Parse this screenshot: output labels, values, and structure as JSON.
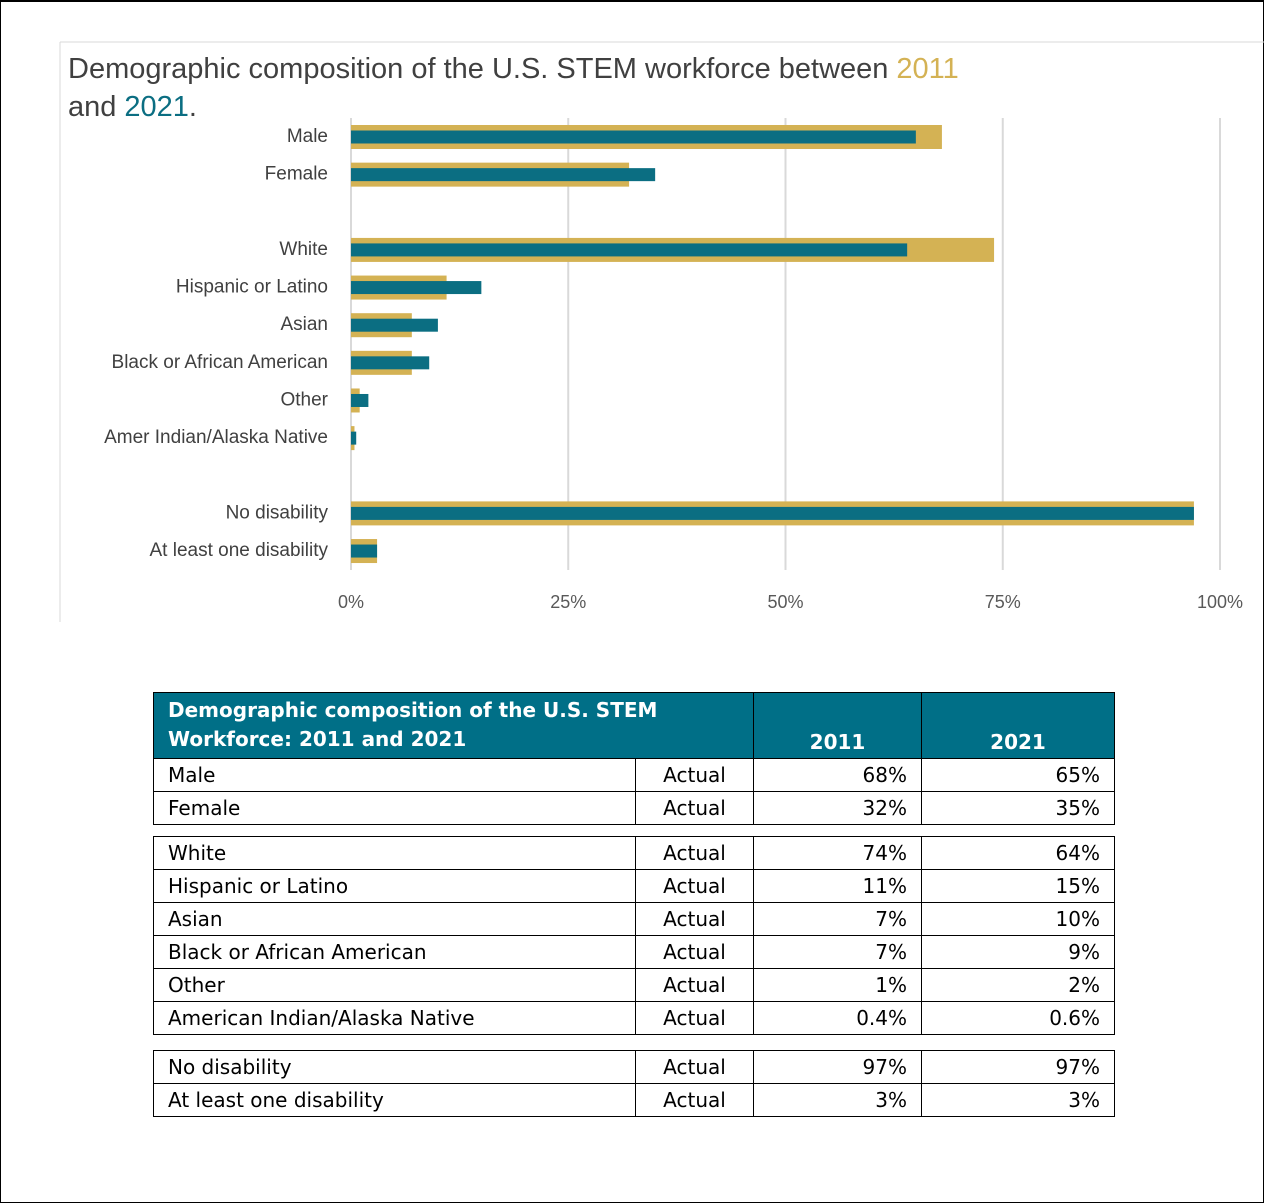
{
  "chart_data": {
    "type": "bar",
    "orientation": "horizontal",
    "title_prefix": "Demographic composition of the U.S. STEM workforce between",
    "title_join": "and",
    "title_end": ".",
    "categories": [
      "Male",
      "Female",
      null,
      "White",
      "Hispanic or Latino",
      "Asian",
      "Black or African American",
      "Other",
      "Amer Indian/Alaska Native",
      null,
      "No disability",
      "At least one disability"
    ],
    "series": [
      {
        "name": "2011",
        "color": "#d4b254",
        "values": [
          68,
          32,
          null,
          74,
          11,
          7,
          7,
          1,
          0.4,
          null,
          97,
          3
        ]
      },
      {
        "name": "2021",
        "color": "#0b6e82",
        "values": [
          65,
          35,
          null,
          64,
          15,
          10,
          9,
          2,
          0.6,
          null,
          97,
          3
        ]
      }
    ],
    "xlim": [
      0,
      100
    ],
    "xticks": [
      {
        "value": 0,
        "label": "0%"
      },
      {
        "value": 25,
        "label": "25%"
      },
      {
        "value": 50,
        "label": "50%"
      },
      {
        "value": 75,
        "label": "75%"
      },
      {
        "value": 100,
        "label": "100%"
      }
    ],
    "grid": true
  },
  "table": {
    "header": [
      "Demographic composition of the U.S. STEM Workforce: 2011 and 2021",
      "2011",
      "2021"
    ],
    "groups": [
      [
        [
          "Male",
          "Actual",
          "68%",
          "65%"
        ],
        [
          "Female",
          "Actual",
          "32%",
          "35%"
        ]
      ],
      [
        [
          "White",
          "Actual",
          "74%",
          "64%"
        ],
        [
          "Hispanic or Latino",
          "Actual",
          "11%",
          "15%"
        ],
        [
          "Asian",
          "Actual",
          "7%",
          "10%"
        ],
        [
          "Black or African American",
          "Actual",
          "7%",
          "9%"
        ],
        [
          "Other",
          "Actual",
          "1%",
          "2%"
        ],
        [
          "American Indian/Alaska Native",
          "Actual",
          "0.4%",
          "0.6%"
        ]
      ],
      [
        [
          "No disability",
          "Actual",
          "97%",
          "97%"
        ],
        [
          "At least one disability",
          "Actual",
          "3%",
          "3%"
        ]
      ]
    ]
  }
}
